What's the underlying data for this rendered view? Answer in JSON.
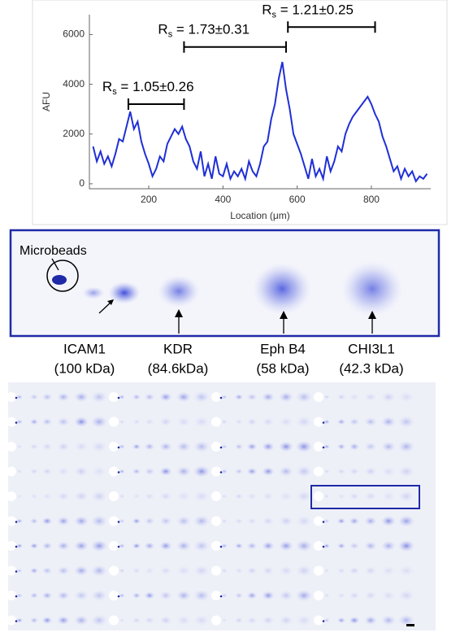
{
  "chart_data": {
    "type": "line",
    "xlabel": "Location (μm)",
    "ylabel": "AFU",
    "x": [
      50,
      60,
      70,
      80,
      90,
      100,
      110,
      120,
      130,
      140,
      150,
      160,
      170,
      180,
      190,
      200,
      210,
      220,
      230,
      240,
      250,
      260,
      270,
      280,
      290,
      300,
      310,
      320,
      330,
      340,
      350,
      360,
      370,
      380,
      390,
      400,
      410,
      420,
      430,
      440,
      450,
      460,
      470,
      480,
      490,
      500,
      510,
      520,
      530,
      540,
      550,
      560,
      570,
      580,
      590,
      600,
      610,
      620,
      630,
      640,
      650,
      660,
      670,
      680,
      690,
      700,
      710,
      720,
      730,
      740,
      750,
      760,
      770,
      780,
      790,
      800,
      810,
      820,
      830,
      840,
      850,
      860,
      870,
      880,
      890,
      900,
      910,
      920,
      930,
      940,
      950
    ],
    "series": [
      {
        "color": "#1f2fd6",
        "values": [
          1500,
          900,
          1300,
          800,
          1100,
          700,
          1200,
          1800,
          1700,
          2300,
          2900,
          2200,
          2500,
          1700,
          1200,
          800,
          300,
          600,
          1100,
          900,
          1600,
          1900,
          2200,
          2000,
          2300,
          1800,
          1500,
          900,
          600,
          1300,
          300,
          800,
          200,
          1100,
          400,
          300,
          800,
          200,
          500,
          300,
          600,
          200,
          900,
          500,
          300,
          800,
          1500,
          1700,
          2600,
          3200,
          4200,
          4900,
          3800,
          3000,
          2000,
          1600,
          1200,
          700,
          200,
          1000,
          300,
          600,
          200,
          1100,
          500,
          900,
          1500,
          1300,
          2000,
          2400,
          2700,
          2900,
          3100,
          3300,
          3500,
          3200,
          2800,
          2500,
          1900,
          1500,
          1000,
          500,
          700,
          200,
          600,
          300,
          500,
          100,
          300,
          200,
          400
        ]
      }
    ],
    "xlim": [
      40,
      960
    ],
    "ylim": [
      -200,
      6800
    ],
    "xticks": [
      200,
      400,
      600,
      800
    ],
    "yticks": [
      0,
      2000,
      4000,
      6000
    ],
    "annotations": [
      {
        "symbol": "R",
        "subscript": "s",
        "text": " = 1.05±0.26",
        "x0": 145,
        "x1": 295,
        "y": 3200
      },
      {
        "symbol": "R",
        "subscript": "s",
        "text": " = 1.73±0.31",
        "x0": 295,
        "x1": 570,
        "y": 5500
      },
      {
        "symbol": "R",
        "subscript": "s",
        "text": " = 1.21±0.25",
        "x0": 575,
        "x1": 810,
        "y": 6300
      }
    ]
  },
  "gel": {
    "callout": "Microbeads",
    "labels": [
      {
        "name": "ICAM1",
        "mass": "(100 kDa)"
      },
      {
        "name": "KDR",
        "mass": "(84.6kDa)"
      },
      {
        "name": "Eph B4",
        "mass": "(58 kDa)"
      },
      {
        "name": "CHI3L1",
        "mass": "(42.3 kDa)"
      }
    ]
  }
}
